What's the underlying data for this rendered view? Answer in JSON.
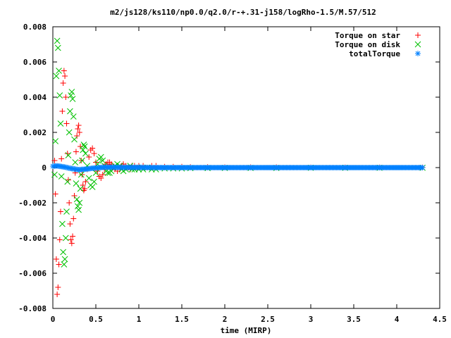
{
  "chart_data": {
    "type": "scatter",
    "title": "m2/js128/ks110/np0.0/q2.0/r-+.31-j158/logRho-1.5/M.57/512",
    "xlabel": "time (MIRP)",
    "ylabel": "",
    "xlim": [
      0,
      4.5
    ],
    "ylim": [
      -0.008,
      0.008
    ],
    "x_ticks": [
      0,
      0.5,
      1,
      1.5,
      2,
      2.5,
      3,
      3.5,
      4,
      4.5
    ],
    "x_tick_labels": [
      "0",
      "0.5",
      "1",
      "1.5",
      "2",
      "2.5",
      "3",
      "3.5",
      "4",
      "4.5"
    ],
    "y_ticks": [
      -0.008,
      -0.006,
      -0.004,
      -0.002,
      0,
      0.002,
      0.004,
      0.006,
      0.008
    ],
    "y_tick_labels": [
      "-0.008",
      "-0.006",
      "-0.004",
      "-0.002",
      "0",
      "0.002",
      "0.004",
      "0.006",
      "0.008"
    ],
    "grid": false,
    "legend_position": "top-right",
    "series": [
      {
        "name": "Torque on star",
        "marker": "plus",
        "color": "#ff0000",
        "x": [
          0.02,
          0.03,
          0.04,
          0.05,
          0.06,
          0.07,
          0.08,
          0.09,
          0.1,
          0.11,
          0.12,
          0.13,
          0.14,
          0.15,
          0.16,
          0.17,
          0.18,
          0.19,
          0.2,
          0.21,
          0.22,
          0.23,
          0.24,
          0.25,
          0.26,
          0.27,
          0.28,
          0.29,
          0.3,
          0.31,
          0.32,
          0.33,
          0.34,
          0.35,
          0.36,
          0.37,
          0.38,
          0.4,
          0.42,
          0.44,
          0.46,
          0.48,
          0.5,
          0.52,
          0.54,
          0.56,
          0.58,
          0.6,
          0.62,
          0.64,
          0.66,
          0.68,
          0.7,
          0.72,
          0.75,
          0.78,
          0.8,
          0.82,
          0.85,
          0.88,
          0.9,
          0.92,
          0.95,
          0.98,
          1.0,
          1.05,
          1.1,
          1.15,
          1.2,
          1.3,
          1.4,
          1.5,
          1.6,
          1.8,
          2.0,
          2.3,
          2.6,
          3.0,
          3.4,
          3.8,
          4.3
        ],
        "y": [
          0.0004,
          -0.0015,
          -0.0052,
          -0.0072,
          -0.0068,
          -0.0055,
          -0.0041,
          -0.0025,
          0.0005,
          0.0032,
          0.0048,
          0.0055,
          0.0052,
          0.004,
          0.0025,
          0.0008,
          -0.0007,
          -0.002,
          -0.0032,
          -0.0041,
          -0.0043,
          -0.0039,
          -0.0029,
          -0.0016,
          -0.0003,
          0.0009,
          0.0018,
          0.0022,
          0.0024,
          0.002,
          0.0012,
          0.0004,
          -0.0004,
          -0.001,
          -0.0013,
          -0.0012,
          -0.0008,
          -0.0001,
          0.0006,
          0.001,
          0.0011,
          0.0008,
          0.0003,
          -0.0002,
          -0.0005,
          -0.0006,
          -0.0004,
          -0.0001,
          0.0002,
          0.0003,
          0.0003,
          0.0002,
          0.0,
          -0.0001,
          -0.0002,
          -0.0001,
          0.0001,
          0.0002,
          0.0001,
          0.0,
          -0.0001,
          0.0001,
          0.0001,
          0.0,
          0.0001,
          0.0001,
          0.0,
          0.0001,
          0.0001,
          5e-05,
          5e-05,
          5e-05,
          3e-05,
          3e-05,
          2e-05,
          2e-05,
          2e-05,
          1e-05,
          1e-05,
          1e-05,
          1e-05
        ]
      },
      {
        "name": "Torque on disk",
        "marker": "cross",
        "color": "#00c000",
        "x": [
          0.02,
          0.03,
          0.04,
          0.05,
          0.06,
          0.07,
          0.08,
          0.09,
          0.1,
          0.11,
          0.12,
          0.13,
          0.14,
          0.15,
          0.16,
          0.17,
          0.18,
          0.19,
          0.2,
          0.21,
          0.22,
          0.23,
          0.24,
          0.25,
          0.26,
          0.27,
          0.28,
          0.29,
          0.3,
          0.31,
          0.32,
          0.33,
          0.34,
          0.35,
          0.36,
          0.37,
          0.38,
          0.4,
          0.42,
          0.44,
          0.46,
          0.48,
          0.5,
          0.52,
          0.54,
          0.56,
          0.58,
          0.6,
          0.62,
          0.64,
          0.66,
          0.68,
          0.7,
          0.72,
          0.75,
          0.78,
          0.8,
          0.82,
          0.85,
          0.88,
          0.9,
          0.92,
          0.95,
          0.98,
          1.0,
          1.05,
          1.1,
          1.15,
          1.2,
          1.3,
          1.4,
          1.5,
          1.6,
          1.8,
          2.0,
          2.3,
          2.6,
          3.0,
          3.4,
          3.8,
          4.3
        ],
        "y": [
          -0.0004,
          0.0015,
          0.0052,
          0.0072,
          0.0068,
          0.0055,
          0.0041,
          0.0025,
          -0.0005,
          -0.0032,
          -0.0048,
          -0.0055,
          -0.0052,
          -0.004,
          -0.0025,
          -0.0008,
          0.0007,
          0.002,
          0.0032,
          0.0041,
          0.0043,
          0.0039,
          0.0029,
          0.0016,
          0.0003,
          -0.0009,
          -0.0018,
          -0.0022,
          -0.0024,
          -0.002,
          -0.0012,
          -0.0004,
          0.0004,
          0.001,
          0.0013,
          0.0012,
          0.0008,
          0.0001,
          -0.0006,
          -0.001,
          -0.0011,
          -0.0008,
          -0.0003,
          0.0002,
          0.0005,
          0.0006,
          0.0004,
          0.0001,
          -0.0002,
          -0.0003,
          -0.0003,
          -0.0002,
          0.0,
          0.0001,
          0.0002,
          0.0001,
          -0.0001,
          -0.0002,
          -0.0001,
          0.0,
          0.0001,
          -0.0001,
          -0.0001,
          0.0,
          -0.0001,
          -0.0001,
          0.0,
          -0.0001,
          -0.0001,
          -5e-05,
          -5e-05,
          -5e-05,
          -3e-05,
          -3e-05,
          -2e-05,
          -2e-05,
          -2e-05,
          -1e-05,
          -1e-05,
          -1e-05,
          -1e-05
        ]
      },
      {
        "name": "totalTorque",
        "marker": "star",
        "color": "#0080ff",
        "x": [
          0.0,
          0.05,
          0.1,
          0.15,
          0.2,
          0.25,
          0.3,
          0.35,
          0.4,
          0.45,
          0.5,
          0.55,
          0.6,
          0.7,
          0.8,
          0.9,
          1.0,
          1.2,
          1.4,
          1.6,
          1.8,
          2.0,
          2.2,
          2.4,
          2.6,
          2.8,
          3.0,
          3.2,
          3.4,
          3.6,
          3.8,
          4.0,
          4.2,
          4.3
        ],
        "y": [
          8e-05,
          0.0001,
          6e-05,
          2e-05,
          -4e-05,
          -8e-05,
          -0.00012,
          -0.0001,
          -8e-05,
          -4e-05,
          -2e-05,
          0.0,
          2e-05,
          2e-05,
          1e-05,
          1e-05,
          1e-05,
          0.0,
          0.0,
          0.0,
          0.0,
          0.0,
          0.0,
          0.0,
          0.0,
          0.0,
          0.0,
          0.0,
          0.0,
          0.0,
          0.0,
          0.0,
          0.0,
          0.0
        ]
      }
    ]
  }
}
